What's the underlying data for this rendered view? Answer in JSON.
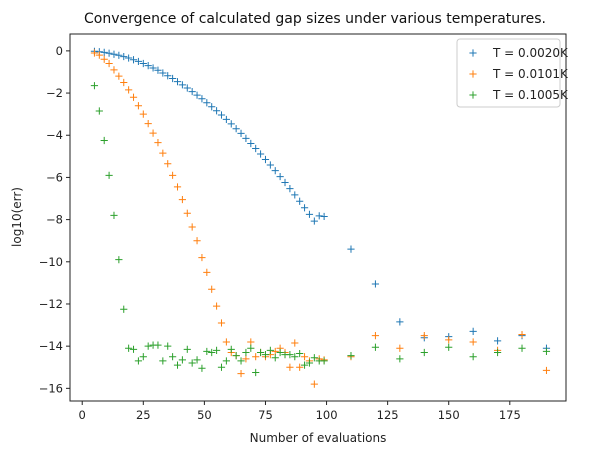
{
  "chart_data": {
    "type": "scatter",
    "title": "Convergence of calculated gap sizes under various temperatures.",
    "xlabel": "Number of evaluations",
    "ylabel": "log10(err)",
    "xlim": [
      -5,
      198
    ],
    "ylim": [
      -16.6,
      0.8
    ],
    "xticks": [
      0,
      25,
      50,
      75,
      100,
      125,
      150,
      175
    ],
    "yticks": [
      0,
      -2,
      -4,
      -6,
      -8,
      -10,
      -12,
      -14,
      -16
    ],
    "marker": "+",
    "legend_position": "top-right",
    "grid": false,
    "series": [
      {
        "name": "T = 0.0020K",
        "color": "#1f77b4",
        "points": [
          [
            5,
            -0.02
          ],
          [
            7,
            -0.04
          ],
          [
            9,
            -0.07
          ],
          [
            11,
            -0.11
          ],
          [
            13,
            -0.16
          ],
          [
            15,
            -0.21
          ],
          [
            17,
            -0.27
          ],
          [
            19,
            -0.34
          ],
          [
            21,
            -0.42
          ],
          [
            23,
            -0.5
          ],
          [
            25,
            -0.6
          ],
          [
            27,
            -0.7
          ],
          [
            29,
            -0.81
          ],
          [
            31,
            -0.92
          ],
          [
            33,
            -1.05
          ],
          [
            35,
            -1.18
          ],
          [
            37,
            -1.31
          ],
          [
            39,
            -1.46
          ],
          [
            41,
            -1.61
          ],
          [
            43,
            -1.76
          ],
          [
            45,
            -1.93
          ],
          [
            47,
            -2.1
          ],
          [
            49,
            -2.27
          ],
          [
            51,
            -2.46
          ],
          [
            53,
            -2.65
          ],
          [
            55,
            -2.84
          ],
          [
            57,
            -3.04
          ],
          [
            59,
            -3.25
          ],
          [
            61,
            -3.46
          ],
          [
            63,
            -3.69
          ],
          [
            65,
            -3.91
          ],
          [
            67,
            -4.15
          ],
          [
            69,
            -4.39
          ],
          [
            71,
            -4.63
          ],
          [
            73,
            -4.89
          ],
          [
            75,
            -5.15
          ],
          [
            77,
            -5.41
          ],
          [
            79,
            -5.68
          ],
          [
            81,
            -5.96
          ],
          [
            83,
            -6.24
          ],
          [
            85,
            -6.53
          ],
          [
            87,
            -6.83
          ],
          [
            89,
            -7.13
          ],
          [
            91,
            -7.44
          ],
          [
            93,
            -7.75
          ],
          [
            95,
            -8.07
          ],
          [
            97,
            -7.82
          ],
          [
            99,
            -7.85
          ],
          [
            110,
            -9.4
          ],
          [
            120,
            -11.05
          ],
          [
            130,
            -12.85
          ],
          [
            140,
            -13.6
          ],
          [
            150,
            -13.55
          ],
          [
            160,
            -13.3
          ],
          [
            170,
            -13.75
          ],
          [
            180,
            -13.5
          ],
          [
            190,
            -14.1
          ]
        ]
      },
      {
        "name": "T = 0.0101K",
        "color": "#ff7f0e",
        "points": [
          [
            5,
            -0.1
          ],
          [
            7,
            -0.2
          ],
          [
            9,
            -0.4
          ],
          [
            11,
            -0.6
          ],
          [
            13,
            -0.9
          ],
          [
            15,
            -1.2
          ],
          [
            17,
            -1.5
          ],
          [
            19,
            -1.85
          ],
          [
            21,
            -2.2
          ],
          [
            23,
            -2.6
          ],
          [
            25,
            -3.0
          ],
          [
            27,
            -3.45
          ],
          [
            29,
            -3.9
          ],
          [
            31,
            -4.35
          ],
          [
            33,
            -4.85
          ],
          [
            35,
            -5.35
          ],
          [
            37,
            -5.9
          ],
          [
            39,
            -6.45
          ],
          [
            41,
            -7.05
          ],
          [
            43,
            -7.7
          ],
          [
            45,
            -8.35
          ],
          [
            47,
            -9.0
          ],
          [
            49,
            -9.8
          ],
          [
            51,
            -10.5
          ],
          [
            53,
            -11.3
          ],
          [
            55,
            -12.1
          ],
          [
            57,
            -12.9
          ],
          [
            59,
            -13.8
          ],
          [
            61,
            -14.3
          ],
          [
            63,
            -14.45
          ],
          [
            65,
            -15.3
          ],
          [
            67,
            -14.6
          ],
          [
            69,
            -13.8
          ],
          [
            71,
            -14.5
          ],
          [
            73,
            -14.3
          ],
          [
            75,
            -14.5
          ],
          [
            77,
            -14.4
          ],
          [
            79,
            -14.25
          ],
          [
            81,
            -14.1
          ],
          [
            83,
            -14.3
          ],
          [
            85,
            -15.0
          ],
          [
            87,
            -13.85
          ],
          [
            89,
            -15.0
          ],
          [
            91,
            -14.5
          ],
          [
            93,
            -14.7
          ],
          [
            95,
            -15.8
          ],
          [
            97,
            -14.6
          ],
          [
            99,
            -14.65
          ],
          [
            110,
            -14.5
          ],
          [
            120,
            -13.5
          ],
          [
            130,
            -14.1
          ],
          [
            140,
            -13.5
          ],
          [
            150,
            -13.7
          ],
          [
            160,
            -13.8
          ],
          [
            170,
            -14.2
          ],
          [
            180,
            -13.45
          ],
          [
            190,
            -15.15
          ]
        ]
      },
      {
        "name": "T = 0.1005K",
        "color": "#2ca02c",
        "points": [
          [
            5,
            -1.65
          ],
          [
            7,
            -2.85
          ],
          [
            9,
            -4.25
          ],
          [
            11,
            -5.9
          ],
          [
            13,
            -7.8
          ],
          [
            15,
            -9.9
          ],
          [
            17,
            -12.25
          ],
          [
            19,
            -14.1
          ],
          [
            21,
            -14.15
          ],
          [
            23,
            -14.7
          ],
          [
            25,
            -14.5
          ],
          [
            27,
            -14.0
          ],
          [
            29,
            -13.95
          ],
          [
            31,
            -13.95
          ],
          [
            33,
            -14.7
          ],
          [
            35,
            -14.0
          ],
          [
            37,
            -14.5
          ],
          [
            39,
            -14.9
          ],
          [
            41,
            -14.65
          ],
          [
            43,
            -14.15
          ],
          [
            45,
            -14.8
          ],
          [
            47,
            -14.65
          ],
          [
            49,
            -15.05
          ],
          [
            51,
            -14.25
          ],
          [
            53,
            -14.3
          ],
          [
            55,
            -14.2
          ],
          [
            57,
            -15.0
          ],
          [
            59,
            -14.7
          ],
          [
            61,
            -14.15
          ],
          [
            63,
            -14.45
          ],
          [
            65,
            -14.7
          ],
          [
            67,
            -14.3
          ],
          [
            69,
            -14.1
          ],
          [
            71,
            -15.25
          ],
          [
            73,
            -14.3
          ],
          [
            75,
            -14.4
          ],
          [
            77,
            -14.2
          ],
          [
            79,
            -14.55
          ],
          [
            81,
            -14.3
          ],
          [
            83,
            -14.4
          ],
          [
            85,
            -14.4
          ],
          [
            87,
            -14.5
          ],
          [
            89,
            -14.35
          ],
          [
            91,
            -14.9
          ],
          [
            93,
            -14.8
          ],
          [
            95,
            -14.55
          ],
          [
            97,
            -14.7
          ],
          [
            99,
            -14.7
          ],
          [
            110,
            -14.45
          ],
          [
            120,
            -14.05
          ],
          [
            130,
            -14.6
          ],
          [
            140,
            -14.3
          ],
          [
            150,
            -14.05
          ],
          [
            160,
            -14.5
          ],
          [
            170,
            -14.3
          ],
          [
            180,
            -14.1
          ],
          [
            190,
            -14.25
          ]
        ]
      }
    ]
  }
}
